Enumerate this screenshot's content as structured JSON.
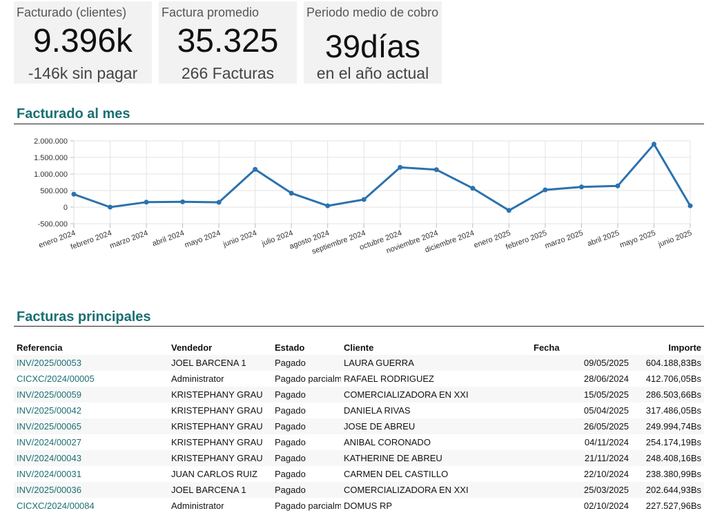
{
  "kpis": [
    {
      "label": "Facturado (clientes)",
      "value": "9.396k",
      "sub": "-146k sin pagar"
    },
    {
      "label": "Factura promedio",
      "value": "35.325",
      "sub": "266 Facturas"
    },
    {
      "label": "Periodo medio de cobro",
      "value": "39días",
      "sub": "en el año actual"
    }
  ],
  "monthly": {
    "title": "Facturado al mes"
  },
  "top": {
    "title": "Facturas principales",
    "columns": [
      "Referencia",
      "Vendedor",
      "Estado",
      "Cliente",
      "Fecha",
      "Importe"
    ],
    "rows": [
      {
        "ref": "INV/2025/00053",
        "seller": "JOEL BARCENA 1",
        "status": "Pagado",
        "client": "LAURA GUERRA",
        "date": "09/05/2025",
        "amount": "604.188,83Bs"
      },
      {
        "ref": "CICXC/2024/00005",
        "seller": "Administrator",
        "status": "Pagado parcialm",
        "client": "RAFAEL RODRIGUEZ",
        "date": "28/06/2024",
        "amount": "412.706,05Bs"
      },
      {
        "ref": "INV/2025/00059",
        "seller": "KRISTEPHANY GRAU",
        "status": "Pagado",
        "client": "COMERCIALIZADORA EN XXI",
        "date": "15/05/2025",
        "amount": "286.503,66Bs"
      },
      {
        "ref": "INV/2025/00042",
        "seller": "KRISTEPHANY GRAU",
        "status": "Pagado",
        "client": "DANIELA RIVAS",
        "date": "05/04/2025",
        "amount": "317.486,05Bs"
      },
      {
        "ref": "INV/2025/00065",
        "seller": "KRISTEPHANY GRAU",
        "status": "Pagado",
        "client": "JOSE DE ABREU",
        "date": "26/05/2025",
        "amount": "249.994,74Bs"
      },
      {
        "ref": "INV/2024/00027",
        "seller": "KRISTEPHANY GRAU",
        "status": "Pagado",
        "client": "ANIBAL CORONADO",
        "date": "04/11/2024",
        "amount": "254.174,19Bs"
      },
      {
        "ref": "INV/2024/00043",
        "seller": "KRISTEPHANY GRAU",
        "status": "Pagado",
        "client": "KATHERINE DE ABREU",
        "date": "21/11/2024",
        "amount": "248.408,16Bs"
      },
      {
        "ref": "INV/2024/00031",
        "seller": "JUAN CARLOS RUIZ",
        "status": "Pagado",
        "client": "CARMEN DEL CASTILLO",
        "date": "22/10/2024",
        "amount": "238.380,99Bs"
      },
      {
        "ref": "INV/2025/00036",
        "seller": "JOEL BARCENA 1",
        "status": "Pagado",
        "client": "COMERCIALIZADORA EN XXI",
        "date": "25/03/2025",
        "amount": "202.644,93Bs"
      },
      {
        "ref": "CICXC/2024/00084",
        "seller": "Administrator",
        "status": "Pagado parcialm",
        "client": "DOMUS RP",
        "date": "02/10/2024",
        "amount": "227.527,96Bs"
      }
    ]
  },
  "chart_data": {
    "type": "line",
    "title": "",
    "xlabel": "",
    "ylabel": "",
    "categories": [
      "enero 2024",
      "febrero 2024",
      "marzo 2024",
      "abril 2024",
      "mayo 2024",
      "junio 2024",
      "julio 2024",
      "agosto 2024",
      "septiembre 2024",
      "octubre 2024",
      "noviembre 2024",
      "diciembre 2024",
      "enero 2025",
      "febrero 2025",
      "marzo 2025",
      "abril 2025",
      "mayo 2025",
      "junio 2025"
    ],
    "values": [
      390000,
      0,
      150000,
      160000,
      145000,
      1140000,
      420000,
      40000,
      230000,
      1200000,
      1130000,
      570000,
      -100000,
      520000,
      610000,
      640000,
      1900000,
      40000
    ],
    "ylim": [
      -500000,
      2000000
    ],
    "yticks": [
      2000000,
      1500000,
      1000000,
      500000,
      0,
      -500000
    ],
    "ytick_labels": [
      "2.000.000",
      "1.500.000",
      "1.000.000",
      "500.000",
      "0",
      "-500.000"
    ],
    "grid": true,
    "legend": "none",
    "line_color": "#2b72ae"
  }
}
